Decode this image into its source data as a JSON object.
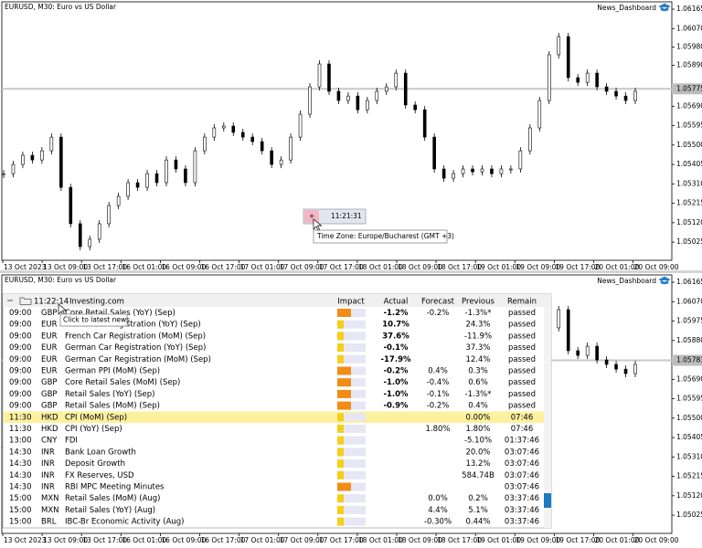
{
  "top_chart": {
    "title": "EURUSD, M30:  Euro vs US Dollar",
    "indicator": "News_Dashboard",
    "ylim": [
      1.04936,
      1.06201
    ],
    "yticks": [
      {
        "value": 1.06165,
        "label": "1.06165"
      },
      {
        "value": 1.0607,
        "label": "1.06070"
      },
      {
        "value": 1.0598,
        "label": "1.05980"
      },
      {
        "value": 1.0589,
        "label": "1.05890"
      },
      {
        "value": 1.0569,
        "label": "1.05690"
      },
      {
        "value": 1.05595,
        "label": "1.05595"
      },
      {
        "value": 1.055,
        "label": "1.05500"
      },
      {
        "value": 1.05405,
        "label": "1.05405"
      },
      {
        "value": 1.0531,
        "label": "1.05310"
      },
      {
        "value": 1.05215,
        "label": "1.05215"
      },
      {
        "value": 1.0512,
        "label": "1.05120"
      },
      {
        "value": 1.05025,
        "label": "1.05025"
      }
    ],
    "price_line": {
      "value": 1.05775,
      "label": "1.05775"
    }
  },
  "bottom_chart": {
    "title": "EURUSD, M30:  Euro vs US Dollar",
    "indicator": "News_Dashboard",
    "ylim": [
      1.04936,
      1.06201
    ],
    "yticks": [
      {
        "value": 1.06165,
        "label": "1.06165"
      },
      {
        "value": 1.0607,
        "label": "1.06070"
      },
      {
        "value": 1.05975,
        "label": "1.05975"
      },
      {
        "value": 1.0588,
        "label": "1.05880"
      },
      {
        "value": 1.0569,
        "label": "1.05690"
      },
      {
        "value": 1.05595,
        "label": "1.05595"
      },
      {
        "value": 1.055,
        "label": "1.05500"
      },
      {
        "value": 1.05405,
        "label": "1.05405"
      },
      {
        "value": 1.0531,
        "label": "1.05310"
      },
      {
        "value": 1.05215,
        "label": "1.05215"
      },
      {
        "value": 1.0512,
        "label": "1.05120"
      },
      {
        "value": 1.05025,
        "label": "1.05025"
      }
    ],
    "price_line": {
      "value": 1.05783,
      "label": "1.05783"
    }
  },
  "x_labels": [
    "13 Oct 2023",
    "13 Oct 09:00",
    "13 Oct 17:00",
    "16 Oct 01:00",
    "16 Oct 09:00",
    "16 Oct 17:00",
    "17 Oct 01:00",
    "17 Oct 09:00",
    "17 Oct 17:00",
    "18 Oct 01:00",
    "18 Oct 09:00",
    "18 Oct 17:00",
    "19 Oct 01:00",
    "19 Oct 09:00",
    "19 Oct 17:00",
    "20 Oct 01:00",
    "20 Oct 09:00"
  ],
  "closes": [
    1.0536,
    1.05405,
    1.0545,
    1.05427,
    1.05472,
    1.05539,
    1.05293,
    1.05115,
    1.05003,
    1.05039,
    1.05115,
    1.05204,
    1.05249,
    1.05316,
    1.05293,
    1.0536,
    1.05316,
    1.05427,
    1.05383,
    1.05316,
    1.05472,
    1.05539,
    1.05584,
    1.05593,
    1.05562,
    1.05539,
    1.05517,
    1.05472,
    1.05405,
    1.05427,
    1.05539,
    1.05651,
    1.05785,
    1.05897,
    1.05763,
    1.05718,
    1.0574,
    1.05673,
    1.05718,
    1.05763,
    1.05785,
    1.05852,
    1.05696,
    1.05673,
    1.05539,
    1.05383,
    1.05338,
    1.0536,
    1.05383,
    1.05369,
    1.05383,
    1.0536,
    1.05383,
    1.05383,
    1.05472,
    1.05584,
    1.05718,
    1.05942,
    1.06031,
    1.0583,
    1.05807,
    1.05852,
    1.05785,
    1.05763,
    1.0574,
    1.05718,
    1.05763
  ],
  "clock_button": {
    "symbol": "+",
    "time": "11:21:31"
  },
  "timezone_tooltip": "Time Zone: Europe/Bucharest (GMT +3)",
  "news_panel": {
    "time": "11:22:14",
    "source": "Investing.com",
    "tooltip": "Click to latest news",
    "columns": [
      "Impact",
      "Actual",
      "Forecast",
      "Previous",
      "Remain"
    ],
    "rows": [
      {
        "time": "09:00",
        "currency": "GBP",
        "event": "Core Retail Sales (YoY) (Sep)",
        "impact": "high",
        "actual": "-1.2%",
        "actual_color": "#d9141b",
        "forecast": "-0.2%",
        "previous": "-1.3%*",
        "previous_color": "#1a9a2a",
        "remain": "passed"
      },
      {
        "time": "09:00",
        "currency": "EUR",
        "event": "French Car Registration (YoY) (Sep)",
        "impact": "low",
        "actual": "10.7%",
        "actual_color": "#1a5f9e",
        "previous": "24.3%",
        "remain": "passed"
      },
      {
        "time": "09:00",
        "currency": "EUR",
        "event": "French Car Registration (MoM) (Sep)",
        "impact": "low",
        "actual": "37.6%",
        "actual_color": "#1a5f9e",
        "previous": "-11.9%",
        "remain": "passed"
      },
      {
        "time": "09:00",
        "currency": "EUR",
        "event": "German Car Registration (YoY) (Sep)",
        "impact": "low",
        "actual": "-0.1%",
        "actual_color": "#1a5f9e",
        "previous": "37.3%",
        "remain": "passed"
      },
      {
        "time": "09:00",
        "currency": "EUR",
        "event": "German Car Registration (MoM) (Sep)",
        "impact": "low",
        "actual": "-17.9%",
        "actual_color": "#1a5f9e",
        "previous": "12.4%",
        "remain": "passed"
      },
      {
        "time": "09:00",
        "currency": "EUR",
        "event": "German PPI (MoM) (Sep)",
        "impact": "high",
        "actual": "-0.2%",
        "actual_color": "#d9141b",
        "forecast": "0.4%",
        "previous": "0.3%",
        "remain": "passed"
      },
      {
        "time": "09:00",
        "currency": "GBP",
        "event": "Core Retail Sales (MoM) (Sep)",
        "impact": "high",
        "actual": "-1.0%",
        "actual_color": "#d9141b",
        "forecast": "-0.4%",
        "previous": "0.6%",
        "remain": "passed"
      },
      {
        "time": "09:00",
        "currency": "GBP",
        "event": "Retail Sales (YoY) (Sep)",
        "impact": "high",
        "actual": "-1.0%",
        "actual_color": "#d9141b",
        "forecast": "-0.1%",
        "previous": "-1.3%*",
        "previous_color": "#1a9a2a",
        "remain": "passed"
      },
      {
        "time": "09:00",
        "currency": "GBP",
        "event": "Retail Sales (MoM) (Sep)",
        "impact": "high",
        "actual": "-0.9%",
        "actual_color": "#d9141b",
        "forecast": "-0.2%",
        "previous": "0.4%",
        "remain": "passed"
      },
      {
        "time": "11:30",
        "currency": "HKD",
        "event": "CPI (MoM) (Sep)",
        "impact": "low",
        "previous": "0.00%",
        "remain": "07:46",
        "highlight": true
      },
      {
        "time": "11:30",
        "currency": "HKD",
        "event": "CPI (YoY) (Sep)",
        "impact": "low",
        "forecast": "1.80%",
        "previous": "1.80%",
        "remain": "07:46"
      },
      {
        "time": "13:00",
        "currency": "CNY",
        "event": "FDI",
        "impact": "low",
        "previous": "-5.10%",
        "remain": "01:37:46"
      },
      {
        "time": "14:30",
        "currency": "INR",
        "event": "Bank Loan Growth",
        "impact": "low",
        "previous": "20.0%",
        "remain": "03:07:46"
      },
      {
        "time": "14:30",
        "currency": "INR",
        "event": "Deposit Growth",
        "impact": "low",
        "previous": "13.2%",
        "remain": "03:07:46"
      },
      {
        "time": "14:30",
        "currency": "INR",
        "event": "FX Reserves, USD",
        "impact": "low",
        "previous": "584.74B",
        "remain": "03:07:46"
      },
      {
        "time": "14:30",
        "currency": "INR",
        "event": "RBI MPC Meeting Minutes",
        "impact": "high",
        "remain": "03:07:46"
      },
      {
        "time": "15:00",
        "currency": "MXN",
        "event": "Retail Sales (MoM) (Aug)",
        "impact": "low",
        "forecast": "0.0%",
        "previous": "0.2%",
        "remain": "03:37:46"
      },
      {
        "time": "15:00",
        "currency": "MXN",
        "event": "Retail Sales (YoY) (Aug)",
        "impact": "low",
        "forecast": "4.4%",
        "previous": "5.1%",
        "remain": "03:37:46"
      },
      {
        "time": "15:00",
        "currency": "BRL",
        "event": "IBC-Br Economic Activity (Aug)",
        "impact": "low",
        "forecast": "-0.30%",
        "previous": "0.44%",
        "remain": "03:37:46"
      }
    ]
  }
}
